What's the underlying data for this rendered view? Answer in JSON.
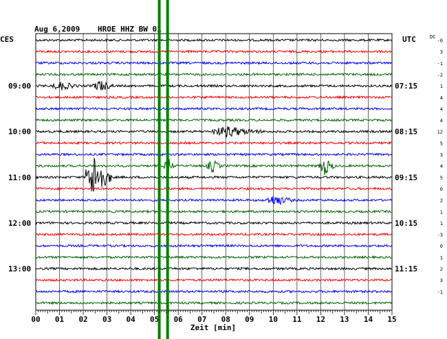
{
  "header": {
    "date": "Aug 6,2009",
    "station": "HROE HHZ BW 01",
    "left_zone": "CES",
    "right_zone": "UTC",
    "dc_label": "DC"
  },
  "chart_data": {
    "type": "line",
    "title": "Aug 6,2009   HROE HHZ BW 01",
    "xlabel": "Zeit [min]",
    "xlim": [
      0,
      15
    ],
    "x_ticks": [
      "00",
      "01",
      "02",
      "03",
      "04",
      "05",
      "06",
      "07",
      "08",
      "09",
      "10",
      "11",
      "12",
      "13",
      "14",
      "15"
    ],
    "rows": 24,
    "row_minutes": 15,
    "trace_colors": [
      "#000000",
      "#ff0000",
      "#0000ff",
      "#006400"
    ],
    "left_time_labels": [
      {
        "row": 4,
        "text": "09:00"
      },
      {
        "row": 8,
        "text": "10:00"
      },
      {
        "row": 12,
        "text": "11:00"
      },
      {
        "row": 16,
        "text": "12:00"
      },
      {
        "row": 20,
        "text": "13:00"
      }
    ],
    "right_time_labels": [
      {
        "row": 4,
        "text": "07:15"
      },
      {
        "row": 8,
        "text": "08:15"
      },
      {
        "row": 12,
        "text": "09:15"
      },
      {
        "row": 16,
        "text": "10:15"
      },
      {
        "row": 20,
        "text": "11:15"
      }
    ],
    "dc_offsets": [
      "-0",
      "3",
      "-1",
      "-2",
      "1",
      "4",
      "4",
      "4",
      "12",
      "5",
      "3",
      "4",
      "5",
      "0",
      "2",
      "1",
      "1",
      "-3",
      "0",
      "1",
      "2",
      "3",
      "-1"
    ],
    "vertical_markers_min": [
      5.2,
      5.55
    ],
    "vertical_marker_color": "#008000",
    "events": [
      {
        "row": 4,
        "minute": 0.8,
        "width": 1.0,
        "amp": 0.35
      },
      {
        "row": 4,
        "minute": 2.5,
        "width": 0.8,
        "amp": 0.5
      },
      {
        "row": 8,
        "minute": 7.5,
        "width": 2.0,
        "amp": 0.45
      },
      {
        "row": 11,
        "minute": 5.5,
        "width": 0.3,
        "amp": 0.8
      },
      {
        "row": 11,
        "minute": 7.3,
        "width": 0.5,
        "amp": 0.6
      },
      {
        "row": 11,
        "minute": 12.0,
        "width": 0.6,
        "amp": 0.8
      },
      {
        "row": 12,
        "minute": 2.2,
        "width": 1.0,
        "amp": 2.2
      },
      {
        "row": 14,
        "minute": 9.8,
        "width": 1.0,
        "amp": 0.5
      }
    ]
  }
}
